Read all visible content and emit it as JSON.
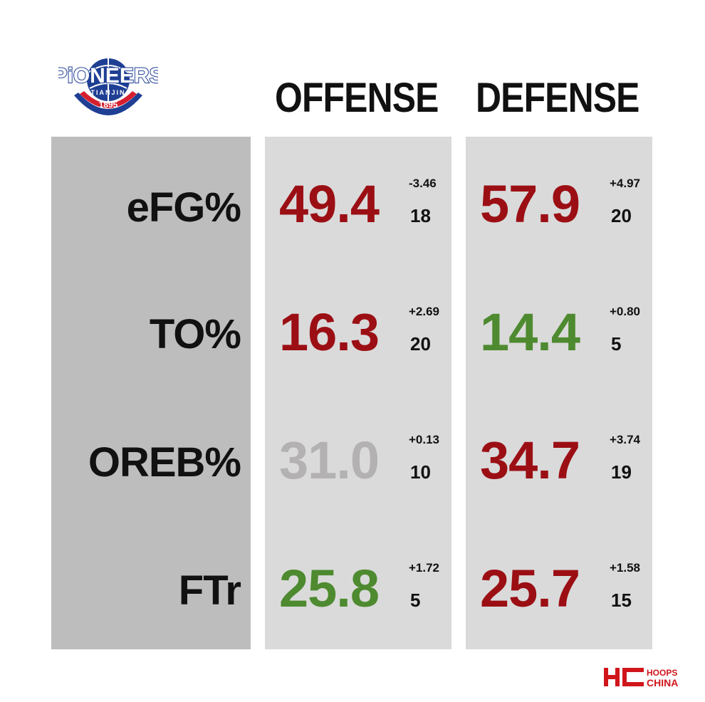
{
  "logo": {
    "wordmark": "PiONEERS",
    "sub": "TIANJIN",
    "year": "1895",
    "icon": "pioneers-basketball-logo"
  },
  "headers": {
    "offense": "OFFENSE",
    "defense": "DEFENSE"
  },
  "colors": {
    "bad": "#9b0f14",
    "good": "#4e8a2f",
    "neutral": "#b3b1b1",
    "label_col": "#bdbdbd",
    "value_col": "#dadada"
  },
  "rows": [
    {
      "label": "eFG%",
      "offense": {
        "value": "49.4",
        "delta": "-3.46",
        "rank": "18",
        "color": "#9b0f14"
      },
      "defense": {
        "value": "57.9",
        "delta": "+4.97",
        "rank": "20",
        "color": "#9b0f14"
      }
    },
    {
      "label": "TO%",
      "offense": {
        "value": "16.3",
        "delta": "+2.69",
        "rank": "20",
        "color": "#9b0f14"
      },
      "defense": {
        "value": "14.4",
        "delta": "+0.80",
        "rank": "5",
        "color": "#4e8a2f"
      }
    },
    {
      "label": "OREB%",
      "offense": {
        "value": "31.0",
        "delta": "+0.13",
        "rank": "10",
        "color": "#b3b1b1"
      },
      "defense": {
        "value": "34.7",
        "delta": "+3.74",
        "rank": "19",
        "color": "#9b0f14"
      }
    },
    {
      "label": "FTr",
      "offense": {
        "value": "25.8",
        "delta": "+1.72",
        "rank": "5",
        "color": "#4e8a2f"
      },
      "defense": {
        "value": "25.7",
        "delta": "+1.58",
        "rank": "15",
        "color": "#9b0f14"
      }
    }
  ],
  "brand": {
    "mark": "HC",
    "line1": "HOOPS",
    "line2": "CHINA",
    "color": "#d0161b"
  }
}
